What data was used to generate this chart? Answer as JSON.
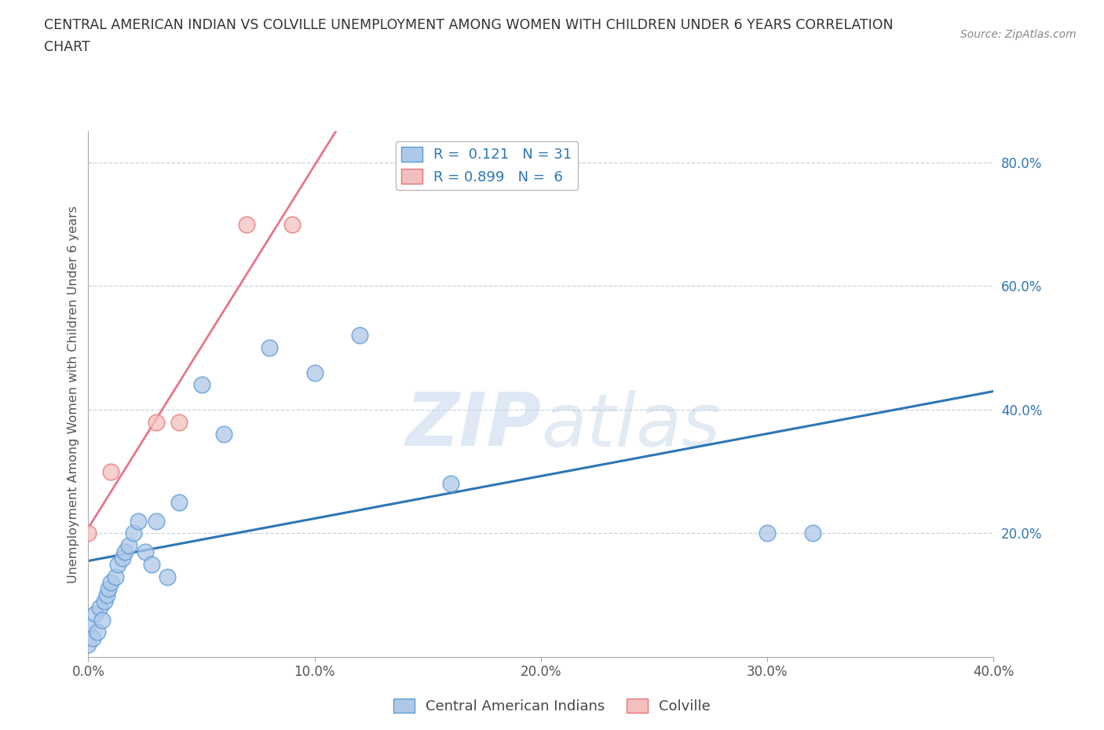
{
  "title_line1": "CENTRAL AMERICAN INDIAN VS COLVILLE UNEMPLOYMENT AMONG WOMEN WITH CHILDREN UNDER 6 YEARS CORRELATION",
  "title_line2": "CHART",
  "source": "Source: ZipAtlas.com",
  "ylabel": "Unemployment Among Women with Children Under 6 years",
  "xlim": [
    0.0,
    0.4
  ],
  "ylim": [
    0.0,
    0.85
  ],
  "xticks": [
    0.0,
    0.1,
    0.2,
    0.3,
    0.4
  ],
  "xtick_labels": [
    "0.0%",
    "10.0%",
    "20.0%",
    "30.0%",
    "40.0%"
  ],
  "ytick_positions_right": [
    0.2,
    0.4,
    0.6,
    0.8
  ],
  "ytick_labels_right": [
    "20.0%",
    "40.0%",
    "60.0%",
    "80.0%"
  ],
  "blue_color": "#aec8e8",
  "blue_edge_color": "#5b9bd5",
  "pink_color": "#f4bfbf",
  "pink_edge_color": "#e87575",
  "blue_line_color": "#2e75b6",
  "pink_line_color": "#e8748a",
  "legend_blue_label": "R =  0.121   N = 31",
  "legend_pink_label": "R = 0.899   N =  6",
  "blue_scatter_x": [
    0.0,
    0.0,
    0.002,
    0.003,
    0.004,
    0.005,
    0.006,
    0.007,
    0.008,
    0.009,
    0.01,
    0.012,
    0.013,
    0.015,
    0.016,
    0.018,
    0.02,
    0.022,
    0.025,
    0.028,
    0.03,
    0.035,
    0.04,
    0.05,
    0.06,
    0.08,
    0.1,
    0.12,
    0.16,
    0.3,
    0.32
  ],
  "blue_scatter_y": [
    0.02,
    0.05,
    0.03,
    0.07,
    0.04,
    0.08,
    0.06,
    0.09,
    0.1,
    0.11,
    0.12,
    0.13,
    0.15,
    0.16,
    0.17,
    0.18,
    0.2,
    0.22,
    0.17,
    0.15,
    0.22,
    0.13,
    0.25,
    0.44,
    0.36,
    0.5,
    0.46,
    0.52,
    0.28,
    0.2,
    0.2
  ],
  "pink_scatter_x": [
    0.0,
    0.01,
    0.03,
    0.04,
    0.07,
    0.09
  ],
  "pink_scatter_y": [
    0.2,
    0.3,
    0.38,
    0.38,
    0.7,
    0.7
  ],
  "watermark_zip": "ZIP",
  "watermark_atlas": "atlas",
  "background_color": "#ffffff",
  "grid_color": "#c8d4e0",
  "legend_entry1_R": "0.121",
  "legend_entry1_N": "31",
  "legend_entry2_R": "0.899",
  "legend_entry2_N": "6"
}
